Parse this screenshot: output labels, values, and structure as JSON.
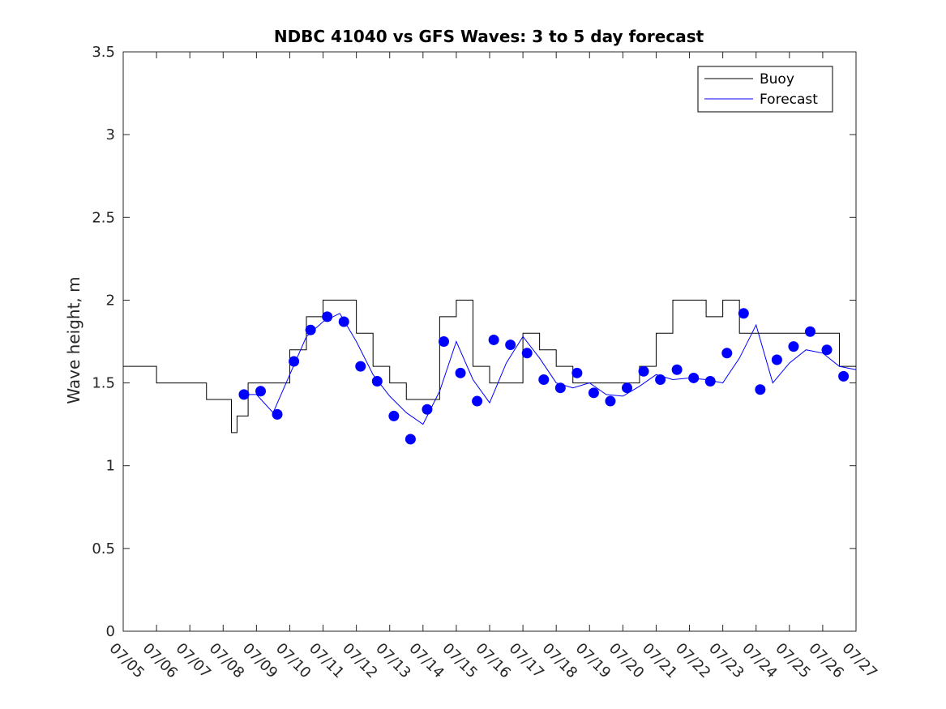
{
  "chart_data": {
    "type": "line",
    "title": "NDBC 41040 vs GFS Waves: 3 to 5 day forecast",
    "xlabel": "",
    "ylabel": "Wave height, m",
    "xlim": [
      "2018-07-05",
      "2018-07-27"
    ],
    "ylim": [
      0,
      3.5
    ],
    "x_tick_labels": [
      "07/05",
      "07/06",
      "07/07",
      "07/08",
      "07/09",
      "07/10",
      "07/11",
      "07/12",
      "07/13",
      "07/14",
      "07/15",
      "07/16",
      "07/17",
      "07/18",
      "07/19",
      "07/20",
      "07/21",
      "07/22",
      "07/23",
      "07/24",
      "07/25",
      "07/26",
      "07/27"
    ],
    "y_tick_labels": [
      "0",
      "0.5",
      "1",
      "1.5",
      "2",
      "2.5",
      "3",
      "3.5"
    ],
    "legend": {
      "placement": "top-right",
      "entries": [
        {
          "label": "Buoy",
          "color": "#000000"
        },
        {
          "label": "Forecast",
          "color": "#0000ff"
        }
      ]
    },
    "colors": {
      "buoy": "#000000",
      "forecast": "#0000ff",
      "markers": "#0000ff"
    },
    "series": [
      {
        "name": "Buoy",
        "x": [
          "07/05 00:00",
          "07/05 12:00",
          "07/06 00:00",
          "07/06 12:00",
          "07/07 00:00",
          "07/07 12:00",
          "07/07 20:00",
          "07/08 06:00",
          "07/08 10:00",
          "07/08 18:00",
          "07/09 00:00",
          "07/09 12:00",
          "07/10 00:00",
          "07/10 12:00",
          "07/11 00:00",
          "07/11 12:00",
          "07/12 00:00",
          "07/12 12:00",
          "07/13 00:00",
          "07/13 12:00",
          "07/14 00:00",
          "07/14 12:00",
          "07/15 00:00",
          "07/15 12:00",
          "07/16 00:00",
          "07/16 12:00",
          "07/17 00:00",
          "07/17 12:00",
          "07/18 00:00",
          "07/18 12:00",
          "07/19 00:00",
          "07/19 12:00",
          "07/20 00:00",
          "07/20 12:00",
          "07/21 00:00",
          "07/21 12:00",
          "07/22 00:00",
          "07/22 12:00",
          "07/23 00:00",
          "07/23 12:00",
          "07/24 00:00",
          "07/24 12:00",
          "07/25 00:00",
          "07/25 12:00",
          "07/26 00:00",
          "07/26 12:00",
          "07/27 00:00"
        ],
        "y": [
          1.6,
          1.6,
          1.5,
          1.5,
          1.5,
          1.4,
          1.4,
          1.2,
          1.3,
          1.5,
          1.5,
          1.5,
          1.7,
          1.9,
          2.0,
          2.0,
          1.8,
          1.6,
          1.5,
          1.4,
          1.4,
          1.9,
          2.0,
          1.6,
          1.5,
          1.5,
          1.8,
          1.7,
          1.6,
          1.5,
          1.5,
          1.5,
          1.5,
          1.6,
          1.8,
          2.0,
          2.0,
          1.9,
          2.0,
          1.8,
          1.8,
          1.8,
          1.8,
          1.8,
          1.8,
          1.6,
          1.6
        ]
      },
      {
        "name": "Forecast",
        "x": [
          "07/08 18:00",
          "07/09 00:00",
          "07/09 12:00",
          "07/10 00:00",
          "07/10 12:00",
          "07/11 00:00",
          "07/11 12:00",
          "07/12 00:00",
          "07/12 12:00",
          "07/13 00:00",
          "07/13 12:00",
          "07/14 00:00",
          "07/14 12:00",
          "07/15 00:00",
          "07/15 12:00",
          "07/16 00:00",
          "07/16 12:00",
          "07/17 00:00",
          "07/17 12:00",
          "07/18 00:00",
          "07/18 12:00",
          "07/19 00:00",
          "07/19 12:00",
          "07/20 00:00",
          "07/20 12:00",
          "07/21 00:00",
          "07/21 12:00",
          "07/22 00:00",
          "07/22 12:00",
          "07/23 00:00",
          "07/23 12:00",
          "07/24 00:00",
          "07/24 12:00",
          "07/25 00:00",
          "07/25 12:00",
          "07/26 00:00",
          "07/26 12:00",
          "07/27 00:00"
        ],
        "y": [
          1.43,
          1.43,
          1.32,
          1.55,
          1.78,
          1.87,
          1.92,
          1.75,
          1.55,
          1.42,
          1.32,
          1.25,
          1.45,
          1.75,
          1.52,
          1.38,
          1.62,
          1.78,
          1.65,
          1.5,
          1.47,
          1.5,
          1.43,
          1.42,
          1.48,
          1.55,
          1.52,
          1.53,
          1.52,
          1.5,
          1.65,
          1.85,
          1.5,
          1.62,
          1.7,
          1.68,
          1.6,
          1.58
        ]
      },
      {
        "name": "Forecast points",
        "x": [
          "07/08 15:00",
          "07/09 03:00",
          "07/09 15:00",
          "07/10 03:00",
          "07/10 15:00",
          "07/11 03:00",
          "07/11 15:00",
          "07/12 03:00",
          "07/12 15:00",
          "07/13 03:00",
          "07/13 15:00",
          "07/14 03:00",
          "07/14 15:00",
          "07/15 03:00",
          "07/15 15:00",
          "07/16 03:00",
          "07/16 15:00",
          "07/17 03:00",
          "07/17 15:00",
          "07/18 03:00",
          "07/18 15:00",
          "07/19 03:00",
          "07/19 15:00",
          "07/20 03:00",
          "07/20 15:00",
          "07/21 03:00",
          "07/21 15:00",
          "07/22 03:00",
          "07/22 15:00",
          "07/23 03:00",
          "07/23 15:00",
          "07/24 03:00",
          "07/24 15:00",
          "07/25 03:00",
          "07/25 15:00",
          "07/26 03:00",
          "07/26 15:00"
        ],
        "y": [
          1.43,
          1.45,
          1.31,
          1.63,
          1.82,
          1.9,
          1.87,
          1.6,
          1.51,
          1.3,
          1.16,
          1.34,
          1.75,
          1.56,
          1.39,
          1.76,
          1.73,
          1.68,
          1.52,
          1.47,
          1.56,
          1.44,
          1.39,
          1.47,
          1.57,
          1.52,
          1.58,
          1.53,
          1.51,
          1.68,
          1.92,
          1.46,
          1.64,
          1.72,
          1.81,
          1.7,
          1.54
        ]
      }
    ]
  }
}
